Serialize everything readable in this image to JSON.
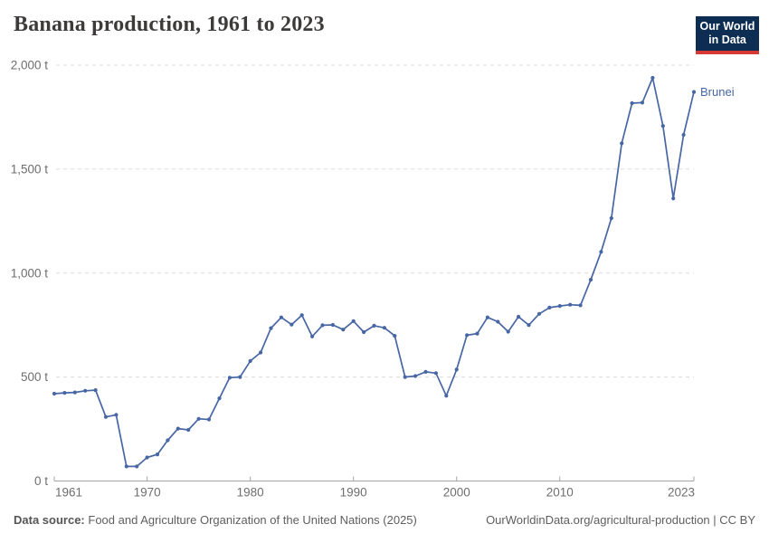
{
  "header": {
    "title": "Banana production, 1961 to 2023",
    "logo": {
      "line1": "Our World",
      "line2": "in Data"
    }
  },
  "chart_data": {
    "type": "line",
    "title": "Banana production, 1961 to 2023",
    "unit": "t",
    "grid": "horizontal dashed",
    "legend_position": "end-of-line label",
    "xlim": [
      1961,
      2023
    ],
    "ylim": [
      0,
      2000
    ],
    "x": [
      1961,
      1962,
      1963,
      1964,
      1965,
      1966,
      1967,
      1968,
      1969,
      1970,
      1971,
      1972,
      1973,
      1974,
      1975,
      1976,
      1977,
      1978,
      1979,
      1980,
      1981,
      1982,
      1983,
      1984,
      1985,
      1986,
      1987,
      1988,
      1989,
      1990,
      1991,
      1992,
      1993,
      1994,
      1995,
      1996,
      1997,
      1998,
      1999,
      2000,
      2001,
      2002,
      2003,
      2004,
      2005,
      2006,
      2007,
      2008,
      2009,
      2010,
      2011,
      2012,
      2013,
      2014,
      2015,
      2016,
      2017,
      2018,
      2019,
      2020,
      2021,
      2022,
      2023
    ],
    "series": [
      {
        "name": "Brunei",
        "values": [
          420,
          424,
          426,
          434,
          437,
          308,
          318,
          70,
          70,
          113,
          128,
          196,
          252,
          246,
          299,
          296,
          398,
          497,
          500,
          577,
          618,
          735,
          787,
          752,
          798,
          695,
          749,
          751,
          728,
          769,
          716,
          747,
          737,
          698,
          500,
          505,
          525,
          519,
          410,
          536,
          701,
          709,
          787,
          766,
          718,
          790,
          750,
          804,
          834,
          842,
          848,
          845,
          968,
          1102,
          1264,
          1624,
          1817,
          1820,
          1939,
          1708,
          1359,
          1665,
          1871
        ]
      }
    ],
    "yticks": [
      {
        "value": 0,
        "label": "0 t"
      },
      {
        "value": 500,
        "label": "500 t"
      },
      {
        "value": 1000,
        "label": "1,000 t"
      },
      {
        "value": 1500,
        "label": "1,500 t"
      },
      {
        "value": 2000,
        "label": "2,000 t"
      }
    ],
    "xticks": [
      {
        "value": 1961,
        "label": "1961"
      },
      {
        "value": 1970,
        "label": "1970"
      },
      {
        "value": 1980,
        "label": "1980"
      },
      {
        "value": 1990,
        "label": "1990"
      },
      {
        "value": 2000,
        "label": "2000"
      },
      {
        "value": 2010,
        "label": "2010"
      },
      {
        "value": 2023,
        "label": "2023"
      }
    ],
    "colors": {
      "line": "#4766a4",
      "grid": "#dcdcdc",
      "axis": "#a5a5a5",
      "tick_text": "#6e6e6e"
    }
  },
  "footer": {
    "source_label": "Data source:",
    "source_text": "Food and Agriculture Organization of the United Nations (2025)",
    "credit": "OurWorldinData.org/agricultural-production | CC BY"
  }
}
